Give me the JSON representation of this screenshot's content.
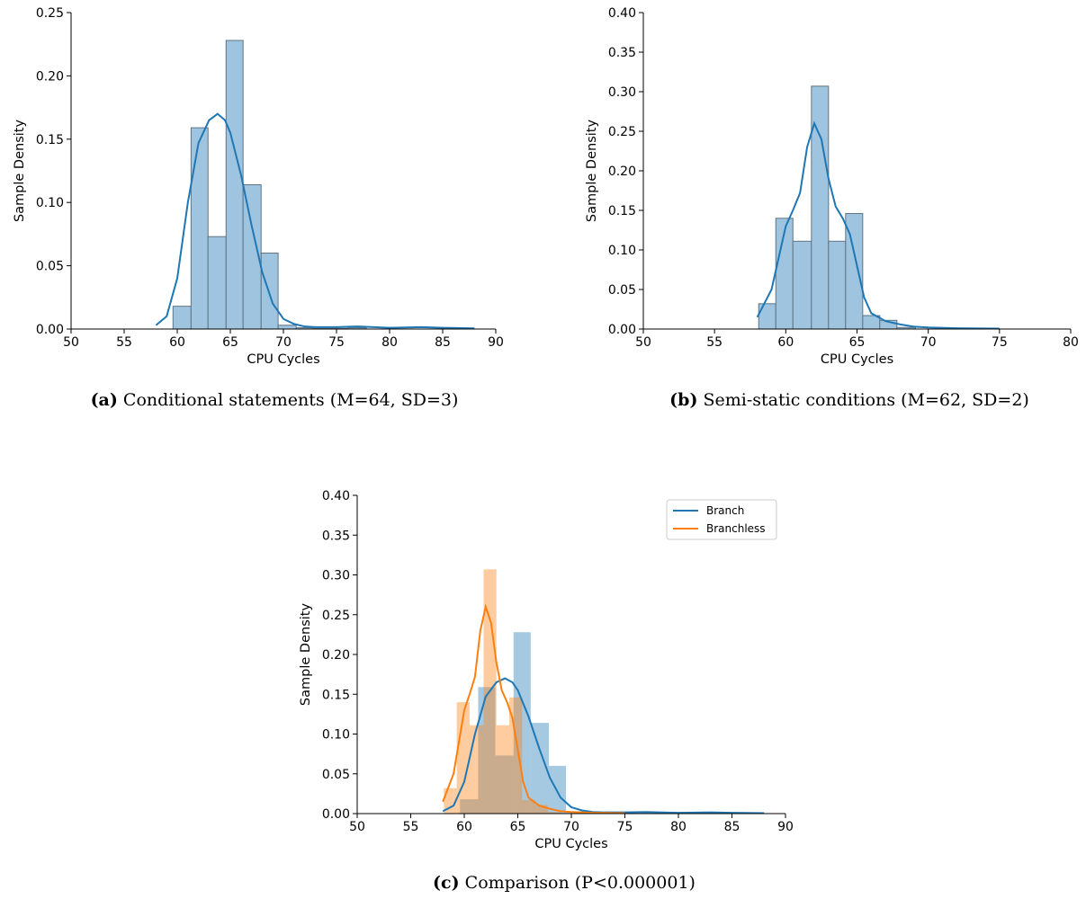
{
  "colors": {
    "branch": "#1f77b4",
    "branchless": "#ff7f0e",
    "bar_blue": "#9fc4e0",
    "bar_orange": "#ffbf86",
    "overlap": "#c8a98a"
  },
  "captions": {
    "a": {
      "tag": "(a)",
      "text": "Conditional statements (M=64, SD=3)"
    },
    "b": {
      "tag": "(b)",
      "text": "Semi-static conditions (M=62, SD=2)"
    },
    "c": {
      "tag": "(c)",
      "text": "Comparison (P<0.000001)"
    }
  },
  "chart_data": [
    {
      "id": "a",
      "type": "bar",
      "subtype": "histogram-with-kde",
      "xlabel": "CPU Cycles",
      "ylabel": "Sample Density",
      "xlim": [
        50,
        90
      ],
      "ylim": [
        0,
        0.25
      ],
      "xticks": [
        "50",
        "55",
        "60",
        "65",
        "70",
        "75",
        "80",
        "85",
        "90"
      ],
      "yticks": [
        "0.00",
        "0.05",
        "0.10",
        "0.15",
        "0.20",
        "0.25"
      ],
      "bin_edges": [
        59.6,
        61.3,
        62.9,
        64.6,
        66.2,
        67.9,
        69.5,
        71.2,
        72.8,
        74.5,
        76.1,
        77.8
      ],
      "values": [
        0.018,
        0.159,
        0.073,
        0.228,
        0.114,
        0.06,
        0.003,
        0.001,
        0.0005,
        0.0005,
        0.001,
        0.0005
      ],
      "series": [
        {
          "name": "",
          "x": [
            58,
            59,
            60,
            61,
            62,
            63,
            63.8,
            64.5,
            65,
            66,
            67,
            68,
            69,
            70,
            71,
            72,
            73,
            75,
            77,
            80,
            83,
            85,
            88
          ],
          "y": [
            0.003,
            0.01,
            0.04,
            0.1,
            0.147,
            0.165,
            0.17,
            0.165,
            0.155,
            0.122,
            0.082,
            0.045,
            0.02,
            0.008,
            0.004,
            0.002,
            0.0015,
            0.0015,
            0.002,
            0.001,
            0.0015,
            0.001,
            0.0005
          ]
        }
      ]
    },
    {
      "id": "b",
      "type": "bar",
      "subtype": "histogram-with-kde",
      "xlabel": "CPU Cycles",
      "ylabel": "Sample Density",
      "xlim": [
        50,
        80
      ],
      "ylim": [
        0,
        0.4
      ],
      "xticks": [
        "50",
        "55",
        "60",
        "65",
        "70",
        "75",
        "80"
      ],
      "yticks": [
        "0.00",
        "0.05",
        "0.10",
        "0.15",
        "0.20",
        "0.25",
        "0.30",
        "0.35",
        "0.40"
      ],
      "bin_edges": [
        58.1,
        59.3,
        60.5,
        61.8,
        63.0,
        64.2,
        65.4,
        66.6,
        67.8,
        69.1
      ],
      "values": [
        0.032,
        0.14,
        0.111,
        0.307,
        0.111,
        0.146,
        0.017,
        0.011,
        0.002
      ],
      "series": [
        {
          "name": "",
          "x": [
            58,
            59,
            60,
            60.5,
            61,
            61.5,
            62,
            62.5,
            63,
            63.5,
            64,
            64.5,
            65,
            65.5,
            66,
            67,
            68,
            69,
            70,
            72,
            75
          ],
          "y": [
            0.015,
            0.05,
            0.13,
            0.15,
            0.172,
            0.23,
            0.26,
            0.24,
            0.19,
            0.155,
            0.14,
            0.12,
            0.08,
            0.04,
            0.02,
            0.01,
            0.006,
            0.003,
            0.002,
            0.001,
            0.0005
          ]
        }
      ]
    },
    {
      "id": "c",
      "type": "bar",
      "subtype": "overlaid-histograms-with-kde",
      "xlabel": "CPU Cycles",
      "ylabel": "Sample Density",
      "xlim": [
        50,
        90
      ],
      "ylim": [
        0,
        0.4
      ],
      "xticks": [
        "50",
        "55",
        "60",
        "65",
        "70",
        "75",
        "80",
        "85",
        "90"
      ],
      "yticks": [
        "0.00",
        "0.05",
        "0.10",
        "0.15",
        "0.20",
        "0.25",
        "0.30",
        "0.35",
        "0.40"
      ],
      "legend_position": "top-right",
      "histograms": [
        {
          "name": "Branch",
          "bin_edges": [
            59.6,
            61.3,
            62.9,
            64.6,
            66.2,
            67.9,
            69.5,
            71.2,
            72.8,
            74.5,
            76.1,
            77.8
          ],
          "values": [
            0.018,
            0.159,
            0.073,
            0.228,
            0.114,
            0.06,
            0.003,
            0.001,
            0.0005,
            0.0005,
            0.001,
            0.0005
          ]
        },
        {
          "name": "Branchless",
          "bin_edges": [
            58.1,
            59.3,
            60.5,
            61.8,
            63.0,
            64.2,
            65.4,
            66.6,
            67.8,
            69.1
          ],
          "values": [
            0.032,
            0.14,
            0.111,
            0.307,
            0.111,
            0.146,
            0.017,
            0.011,
            0.002
          ]
        }
      ],
      "series": [
        {
          "name": "Branch",
          "x": [
            58,
            59,
            60,
            61,
            62,
            63,
            63.8,
            64.5,
            65,
            66,
            67,
            68,
            69,
            70,
            71,
            72,
            73,
            75,
            77,
            80,
            83,
            85,
            88
          ],
          "y": [
            0.003,
            0.01,
            0.04,
            0.1,
            0.147,
            0.165,
            0.17,
            0.165,
            0.155,
            0.122,
            0.082,
            0.045,
            0.02,
            0.008,
            0.004,
            0.002,
            0.0015,
            0.0015,
            0.002,
            0.001,
            0.0015,
            0.001,
            0.0005
          ]
        },
        {
          "name": "Branchless",
          "x": [
            58,
            59,
            60,
            60.5,
            61,
            61.5,
            62,
            62.5,
            63,
            63.5,
            64,
            64.5,
            65,
            65.5,
            66,
            67,
            68,
            69,
            70,
            72,
            75
          ],
          "y": [
            0.015,
            0.05,
            0.13,
            0.15,
            0.172,
            0.23,
            0.26,
            0.24,
            0.19,
            0.155,
            0.14,
            0.12,
            0.08,
            0.04,
            0.02,
            0.01,
            0.006,
            0.003,
            0.002,
            0.001,
            0.0005
          ]
        }
      ]
    }
  ]
}
